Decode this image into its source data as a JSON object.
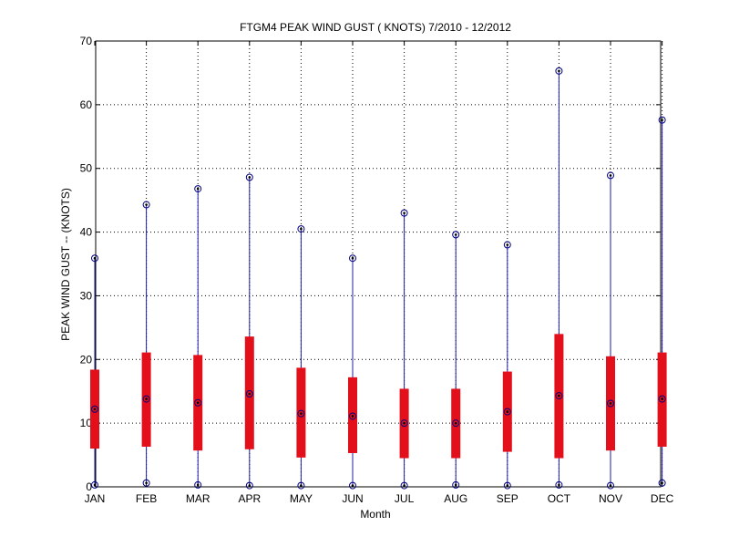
{
  "chart_data": {
    "type": "box",
    "title": "FTGM4  PEAK WIND GUST ( KNOTS) 7/2010 - 12/2012",
    "xlabel": "Month",
    "ylabel": "PEAK WIND GUST -- (KNOTS)",
    "ylim": [
      0,
      70
    ],
    "yticks": [
      0,
      10,
      20,
      30,
      40,
      50,
      60,
      70
    ],
    "grid": true,
    "categories": [
      "JAN",
      "FEB",
      "MAR",
      "APR",
      "MAY",
      "JUN",
      "JUL",
      "AUG",
      "SEP",
      "OCT",
      "NOV",
      "DEC"
    ],
    "series": [
      {
        "min": [
          0.3,
          0.6,
          0.3,
          0.2,
          0.2,
          0.2,
          0.2,
          0.3,
          0.2,
          0.3,
          0.2,
          0.6
        ],
        "q1": [
          6.0,
          6.3,
          5.7,
          5.9,
          4.6,
          5.3,
          4.5,
          4.5,
          5.5,
          4.5,
          5.7,
          6.3
        ],
        "median": [
          12.2,
          13.8,
          13.2,
          14.6,
          11.5,
          11.1,
          10.0,
          10.0,
          11.8,
          14.3,
          13.1,
          13.8
        ],
        "q3": [
          18.4,
          21.1,
          20.7,
          23.6,
          18.7,
          17.2,
          15.4,
          15.4,
          18.1,
          24.0,
          20.5,
          21.1
        ],
        "max": [
          35.9,
          44.3,
          46.8,
          48.6,
          40.5,
          35.9,
          43.0,
          39.6,
          38.0,
          65.3,
          48.9,
          57.6
        ]
      }
    ],
    "colors": {
      "box": "#e3101c",
      "whisker": "#1c1ca8",
      "marker": "#000080",
      "grid": "#000000"
    }
  }
}
